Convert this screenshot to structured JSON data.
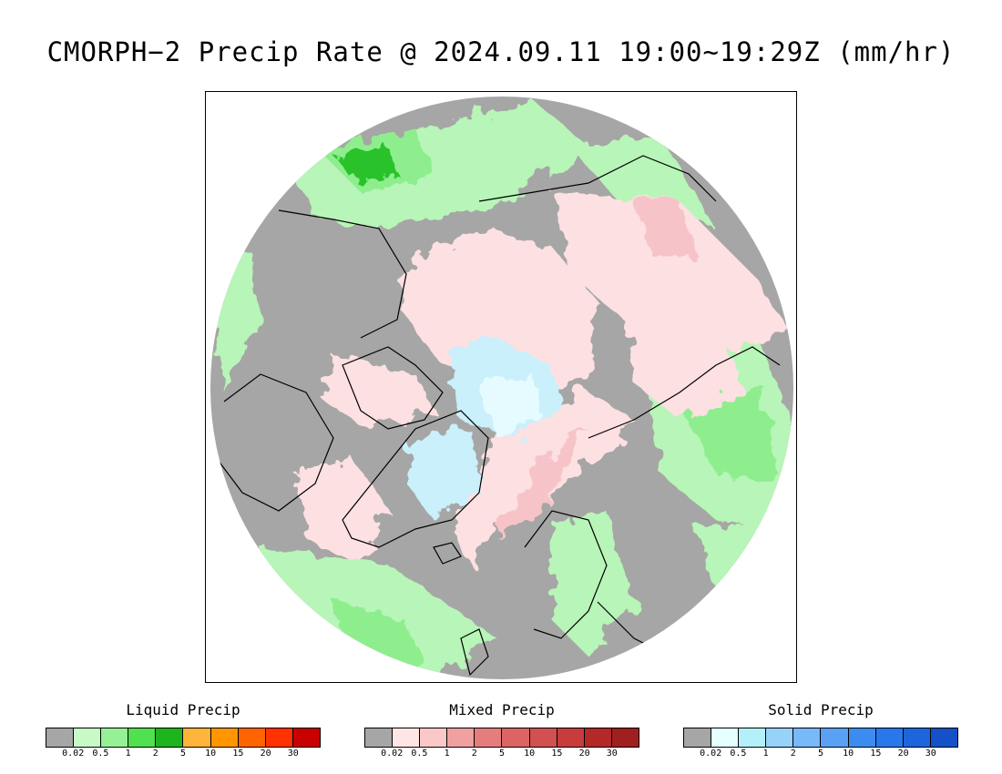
{
  "title": "CMORPH−2 Precip Rate @ 2024.09.11 19:00~19:29Z (mm/hr)",
  "map": {
    "name": "North polar stereographic precipitation map",
    "colors": {
      "no_precip": "#a6a6a6",
      "liquid_light": "#b8f5b8",
      "liquid": "#8eee8e",
      "liquid_heavy": "#2cc22c",
      "mixed_light": "#fde0e2",
      "mixed": "#f6c4c8",
      "mixed_heavy": "#e27a82",
      "solid_light": "#e6fbff",
      "solid": "#c9f0fb",
      "coast": "#000000"
    }
  },
  "legends": [
    {
      "title": "Liquid Precip",
      "colors": [
        "#a6a6a6",
        "#c8fac8",
        "#96f096",
        "#50e050",
        "#1eb41e",
        "#ffb43c",
        "#ff9600",
        "#ff6400",
        "#ff3200",
        "#c80000"
      ],
      "ticks": [
        "0.02",
        "0.5",
        "1",
        "2",
        "5",
        "10",
        "15",
        "20",
        "30"
      ]
    },
    {
      "title": "Mixed Precip",
      "colors": [
        "#a6a6a6",
        "#ffe6e6",
        "#fac8c8",
        "#f0a0a0",
        "#e67d7d",
        "#dc6464",
        "#d25050",
        "#c83c3c",
        "#b42828",
        "#a02020"
      ],
      "ticks": [
        "0.02",
        "0.5",
        "1",
        "2",
        "5",
        "10",
        "15",
        "20",
        "30"
      ]
    },
    {
      "title": "Solid Precip",
      "colors": [
        "#a6a6a6",
        "#e6ffff",
        "#b4f0fa",
        "#96d2fa",
        "#78b9fa",
        "#5aa0f5",
        "#3c8cf0",
        "#2878eb",
        "#1e64dc",
        "#1450c8"
      ],
      "ticks": [
        "0.02",
        "0.5",
        "1",
        "2",
        "5",
        "10",
        "15",
        "20",
        "30"
      ]
    }
  ]
}
